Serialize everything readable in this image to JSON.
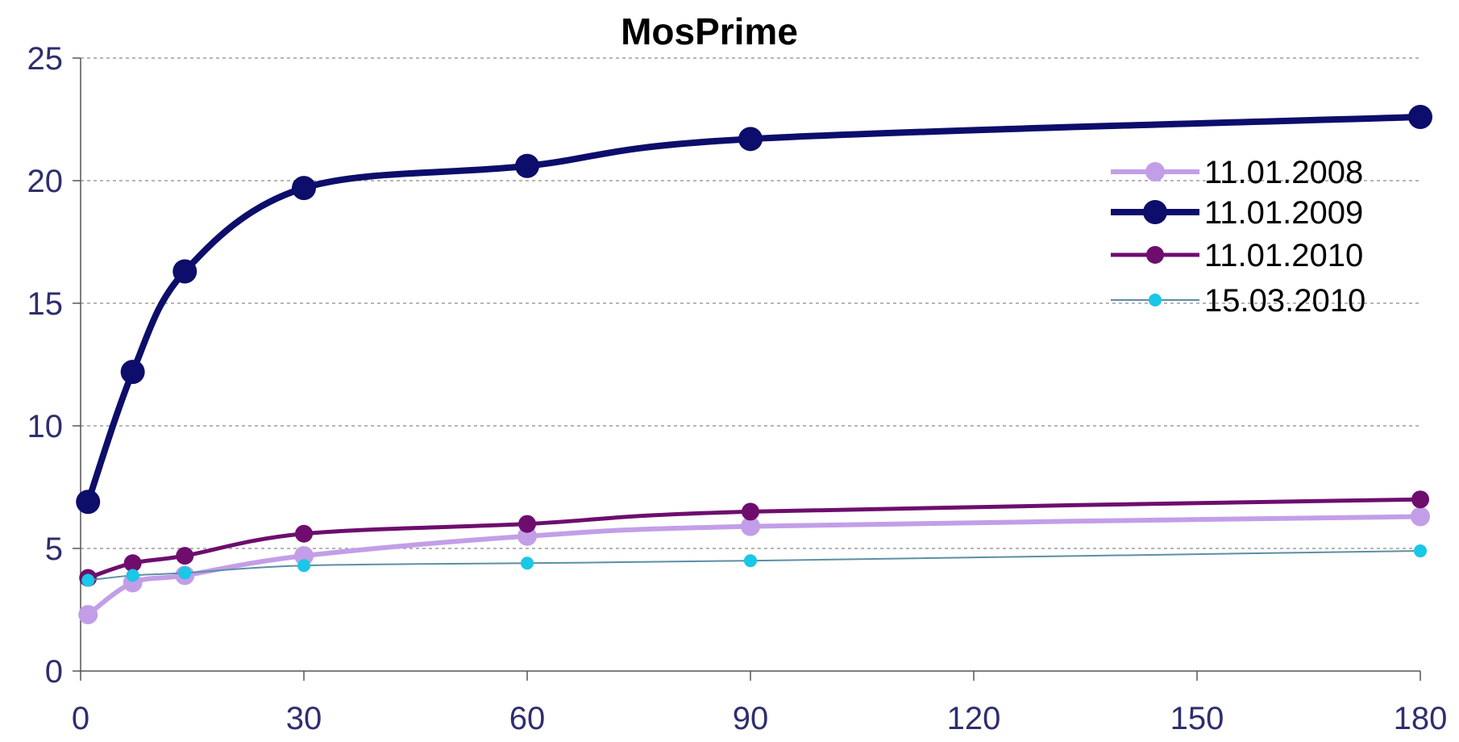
{
  "chart_data": {
    "type": "line",
    "title": "MosPrime",
    "xlabel": "",
    "ylabel": "",
    "xlim": [
      0,
      180
    ],
    "ylim": [
      0,
      25
    ],
    "x_ticks": [
      0,
      30,
      60,
      90,
      120,
      150,
      180
    ],
    "y_ticks": [
      0,
      5,
      10,
      15,
      20,
      25
    ],
    "grid": "horizontal dashed",
    "legend_position": "right",
    "series": [
      {
        "name": "11.01.2008",
        "color": "#c39ee8",
        "points": [
          [
            1,
            2.3
          ],
          [
            7,
            3.6
          ],
          [
            14,
            3.9
          ],
          [
            30,
            4.7
          ],
          [
            60,
            5.5
          ],
          [
            90,
            5.9
          ],
          [
            180,
            6.3
          ]
        ]
      },
      {
        "name": "11.01.2009",
        "color": "#0d0d6b",
        "points": [
          [
            1,
            6.9
          ],
          [
            7,
            12.2
          ],
          [
            14,
            16.3
          ],
          [
            30,
            19.7
          ],
          [
            60,
            20.6
          ],
          [
            90,
            21.7
          ],
          [
            180,
            22.6
          ]
        ]
      },
      {
        "name": "11.01.2010",
        "color": "#6e0d6e",
        "points": [
          [
            1,
            3.8
          ],
          [
            7,
            4.4
          ],
          [
            14,
            4.7
          ],
          [
            30,
            5.6
          ],
          [
            60,
            6.0
          ],
          [
            90,
            6.5
          ],
          [
            180,
            7.0
          ]
        ]
      },
      {
        "name": "15.03.2010",
        "color": "#19c7e6",
        "line_color": "#5c8fa3",
        "points": [
          [
            1,
            3.7
          ],
          [
            7,
            3.9
          ],
          [
            14,
            4.0
          ],
          [
            30,
            4.3
          ],
          [
            60,
            4.4
          ],
          [
            90,
            4.5
          ],
          [
            180,
            4.9
          ]
        ]
      }
    ]
  }
}
